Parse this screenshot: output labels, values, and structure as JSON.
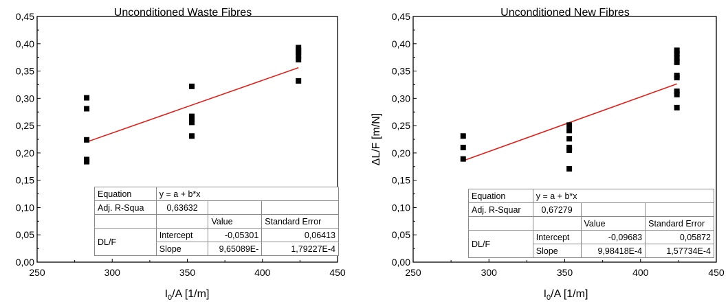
{
  "chart_data": [
    {
      "type": "scatter",
      "title": "Unconditioned Waste Fibres",
      "xlabel": "I0/A [1/m]",
      "ylabel": "",
      "xlim": [
        250,
        450
      ],
      "ylim": [
        0,
        0.45
      ],
      "x_ticks": [
        "250",
        "300",
        "350",
        "400",
        "450"
      ],
      "y_ticks": [
        "0,00",
        "0,05",
        "0,10",
        "0,15",
        "0,20",
        "0,25",
        "0,30",
        "0,35",
        "0,40",
        "0,45"
      ],
      "series": [
        {
          "points": [
            [
              283,
              0.301
            ],
            [
              283,
              0.281
            ],
            [
              283,
              0.224
            ],
            [
              283,
              0.188
            ],
            [
              283,
              0.184
            ],
            [
              353,
              0.322
            ],
            [
              353,
              0.267
            ],
            [
              353,
              0.262
            ],
            [
              353,
              0.256
            ],
            [
              353,
              0.231
            ],
            [
              424,
              0.393
            ],
            [
              424,
              0.388
            ],
            [
              424,
              0.384
            ],
            [
              424,
              0.378
            ],
            [
              424,
              0.371
            ],
            [
              424,
              0.332
            ]
          ]
        }
      ],
      "fit": {
        "intercept": -0.05301,
        "slope": 0.000965089,
        "x_range": [
          283,
          424
        ],
        "color": "#e0201b"
      },
      "marker_color": "#000000",
      "table": {
        "equation_label": "Equation",
        "equation": "y = a + b*x",
        "r2_label": "Adj. R-Squa",
        "r2_value": "0,63632",
        "value_header": "Value",
        "error_header": "Standard Error",
        "row_label": "DL/F",
        "intercept_label": "Intercept",
        "intercept_value": "-0,05301",
        "intercept_error": "0,06413",
        "slope_label": "Slope",
        "slope_value": "9,65089E-",
        "slope_error": "1,79227E-4"
      }
    },
    {
      "type": "scatter",
      "title": "Unconditioned New Fibres",
      "xlabel": "I0/A [1/m]",
      "ylabel": "ΔL/F [m/N]",
      "xlim": [
        250,
        450
      ],
      "ylim": [
        0,
        0.45
      ],
      "x_ticks": [
        "250",
        "300",
        "350",
        "400",
        "450"
      ],
      "y_ticks": [
        "0,00",
        "0,05",
        "0,10",
        "0,15",
        "0,20",
        "0,25",
        "0,30",
        "0,35",
        "0,40",
        "0,45"
      ],
      "series": [
        {
          "points": [
            [
              283,
              0.231
            ],
            [
              283,
              0.21
            ],
            [
              283,
              0.189
            ],
            [
              353,
              0.251
            ],
            [
              353,
              0.241
            ],
            [
              353,
              0.226
            ],
            [
              353,
              0.21
            ],
            [
              353,
              0.205
            ],
            [
              353,
              0.171
            ],
            [
              424,
              0.388
            ],
            [
              424,
              0.382
            ],
            [
              424,
              0.374
            ],
            [
              424,
              0.366
            ],
            [
              424,
              0.342
            ],
            [
              424,
              0.338
            ],
            [
              424,
              0.313
            ],
            [
              424,
              0.307
            ],
            [
              424,
              0.283
            ]
          ]
        }
      ],
      "fit": {
        "intercept": -0.09683,
        "slope": 0.000998418,
        "x_range": [
          283,
          424
        ],
        "color": "#e0201b"
      },
      "marker_color": "#000000",
      "table": {
        "equation_label": "Equation",
        "equation": "y = a + b*x",
        "r2_label": "Adj. R-Squar",
        "r2_value": "0,67279",
        "value_header": "Value",
        "error_header": "Standard Error",
        "row_label": "DL/F",
        "intercept_label": "Intercept",
        "intercept_value": "-0,09683",
        "intercept_error": "0,05872",
        "slope_label": "Slope",
        "slope_value": "9,98418E-4",
        "slope_error": "1,57734E-4"
      }
    }
  ]
}
